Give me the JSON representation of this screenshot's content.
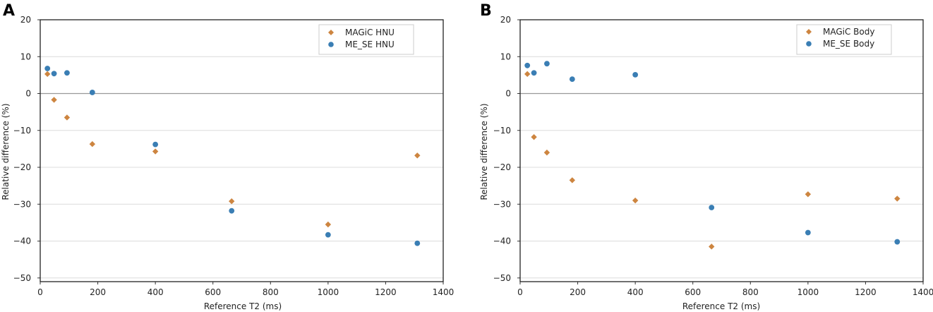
{
  "colors": {
    "magic": "#cd8540",
    "me_se": "#3a7eb4",
    "grid": "#dcdcdc",
    "zero": "#999999"
  },
  "chart_data": [
    {
      "type": "scatter",
      "panel_label": "A",
      "title": "",
      "xlabel": "Reference T2 (ms)",
      "ylabel": "Relative difference (%)",
      "xlim": [
        0,
        1400
      ],
      "ylim": [
        -51,
        20
      ],
      "xticks": [
        0,
        200,
        400,
        600,
        800,
        1000,
        1200,
        1400
      ],
      "xtick_labels": [
        "0",
        "200",
        "400",
        "600",
        "800",
        "1000",
        "1200",
        "1400"
      ],
      "yticks": [
        -50,
        -40,
        -30,
        -20,
        -10,
        0,
        10,
        20
      ],
      "ytick_labels": [
        "−50",
        "−40",
        "−30",
        "−20",
        "−10",
        "0",
        "10",
        "20"
      ],
      "grid": "horizontal",
      "legend_position": "top-right",
      "series": [
        {
          "name": "MAGiC HNU",
          "marker": "diamond",
          "color": "#cd8540",
          "x": [
            25,
            48,
            93,
            181,
            400,
            665,
            1000,
            1310
          ],
          "y": [
            5.3,
            -1.7,
            -6.5,
            -13.7,
            -15.7,
            -29.2,
            -35.5,
            -16.8
          ]
        },
        {
          "name": "ME_SE HNU",
          "marker": "circle",
          "color": "#3a7eb4",
          "x": [
            25,
            48,
            93,
            181,
            400,
            665,
            1000,
            1310
          ],
          "y": [
            6.8,
            5.4,
            5.6,
            0.3,
            -13.8,
            -31.8,
            -38.3,
            -40.6
          ]
        }
      ]
    },
    {
      "type": "scatter",
      "panel_label": "B",
      "title": "",
      "xlabel": "Reference T2 (ms)",
      "ylabel": "Relative difference (%)",
      "xlim": [
        0,
        1400
      ],
      "ylim": [
        -51,
        20
      ],
      "xticks": [
        0,
        200,
        400,
        600,
        800,
        1000,
        1200,
        1400
      ],
      "xtick_labels": [
        "0",
        "200",
        "400",
        "600",
        "800",
        "1000",
        "1200",
        "1400"
      ],
      "yticks": [
        -50,
        -40,
        -30,
        -20,
        -10,
        0,
        10,
        20
      ],
      "ytick_labels": [
        "−50",
        "−40",
        "−30",
        "−20",
        "−10",
        "0",
        "10",
        "20"
      ],
      "grid": "horizontal",
      "legend_position": "top-right",
      "series": [
        {
          "name": "MAGiC Body",
          "marker": "diamond",
          "color": "#cd8540",
          "x": [
            25,
            48,
            93,
            181,
            400,
            665,
            1000,
            1310
          ],
          "y": [
            5.3,
            -11.8,
            -16.0,
            -23.5,
            -29.0,
            -41.5,
            -27.3,
            -28.5
          ]
        },
        {
          "name": "ME_SE Body",
          "marker": "circle",
          "color": "#3a7eb4",
          "x": [
            25,
            48,
            93,
            181,
            400,
            665,
            1000,
            1310
          ],
          "y": [
            7.6,
            5.6,
            8.1,
            3.9,
            5.1,
            -30.9,
            -37.7,
            -40.2
          ]
        }
      ]
    }
  ]
}
